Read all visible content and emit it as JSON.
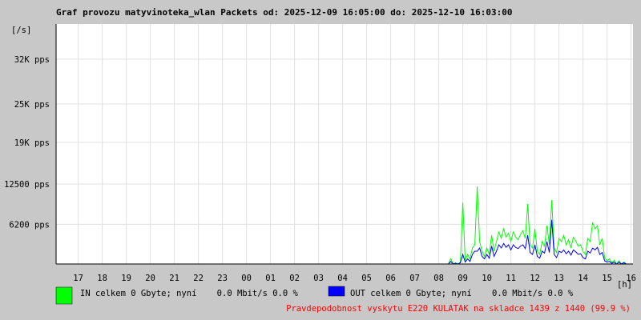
{
  "chart_data": {
    "type": "line",
    "title": "Graf provozu matyvinoteka_wlan Packets od: 2025-12-09 16:05:00 do: 2025-12-10 16:03:00",
    "y_label": "[/s]",
    "x_label": "[h]",
    "footer": "Pravdepodobnost vyskytu E220 KULATAK na skladce 1439 z 1440 (99.9 %)",
    "grid": true,
    "xlim": [
      0.08,
      24.08
    ],
    "xticks": [
      {
        "value": 1,
        "label": "17"
      },
      {
        "value": 2,
        "label": "18"
      },
      {
        "value": 3,
        "label": "19"
      },
      {
        "value": 4,
        "label": "20"
      },
      {
        "value": 5,
        "label": "21"
      },
      {
        "value": 6,
        "label": "22"
      },
      {
        "value": 7,
        "label": "23"
      },
      {
        "value": 8,
        "label": "00"
      },
      {
        "value": 9,
        "label": "01"
      },
      {
        "value": 10,
        "label": "02"
      },
      {
        "value": 11,
        "label": "03"
      },
      {
        "value": 12,
        "label": "04"
      },
      {
        "value": 13,
        "label": "05"
      },
      {
        "value": 14,
        "label": "06"
      },
      {
        "value": 15,
        "label": "07"
      },
      {
        "value": 16,
        "label": "08"
      },
      {
        "value": 17,
        "label": "09"
      },
      {
        "value": 18,
        "label": "10"
      },
      {
        "value": 19,
        "label": "11"
      },
      {
        "value": 20,
        "label": "12"
      },
      {
        "value": 21,
        "label": "13"
      },
      {
        "value": 22,
        "label": "14"
      },
      {
        "value": 23,
        "label": "15"
      },
      {
        "value": 24,
        "label": "16"
      }
    ],
    "ylim": [
      0,
      37500
    ],
    "yticks": [
      {
        "value": 6200,
        "label": "6200 pps"
      },
      {
        "value": 12500,
        "label": "12500 pps"
      },
      {
        "value": 19000,
        "label": "19K pps"
      },
      {
        "value": 25000,
        "label": "25K pps"
      },
      {
        "value": 32000,
        "label": "32K pps"
      }
    ],
    "x": [
      16.0,
      16.1,
      16.2,
      16.3,
      16.4,
      16.5,
      16.6,
      16.7,
      16.8,
      16.9,
      17.0,
      17.1,
      17.2,
      17.3,
      17.4,
      17.5,
      17.6,
      17.7,
      17.8,
      17.9,
      18.0,
      18.1,
      18.2,
      18.3,
      18.4,
      18.5,
      18.6,
      18.7,
      18.8,
      18.9,
      19.0,
      19.1,
      19.2,
      19.3,
      19.4,
      19.5,
      19.6,
      19.7,
      19.8,
      19.9,
      20.0,
      20.1,
      20.2,
      20.3,
      20.4,
      20.5,
      20.6,
      20.7,
      20.8,
      20.9,
      21.0,
      21.1,
      21.2,
      21.3,
      21.4,
      21.5,
      21.6,
      21.7,
      21.8,
      21.9,
      22.0,
      22.1,
      22.2,
      22.3,
      22.4,
      22.5,
      22.6,
      22.7,
      22.8,
      22.9,
      23.0,
      23.1,
      23.2,
      23.3,
      23.4,
      23.5,
      23.6,
      23.7,
      23.8,
      23.9,
      24.0
    ],
    "series": [
      {
        "name": "IN celkem 0 Gbyte; nyní    0.0 Mbit/s 0.0 %",
        "color": "#00ff00",
        "values": [
          0,
          0,
          0,
          0,
          0,
          800,
          0,
          200,
          0,
          300,
          9600,
          500,
          1500,
          800,
          2500,
          3000,
          12100,
          3500,
          2000,
          1200,
          2500,
          1500,
          4500,
          2000,
          3500,
          5000,
          4000,
          5500,
          4200,
          4800,
          3500,
          5000,
          4200,
          3800,
          4600,
          5200,
          4000,
          9400,
          3000,
          2500,
          5500,
          2000,
          1500,
          3500,
          2800,
          6000,
          3000,
          10000,
          2500,
          1800,
          4000,
          3500,
          4500,
          3000,
          3800,
          2500,
          4200,
          3600,
          2800,
          3000,
          2000,
          1500,
          4000,
          3500,
          6500,
          5500,
          6000,
          3000,
          4000,
          1000,
          500,
          800,
          200,
          600,
          0,
          500,
          0,
          300,
          0,
          0,
          0
        ]
      },
      {
        "name": "OUT celkem 0 Gbyte; nyní    0.0 Mbit/s 0.0 %",
        "color": "#0000ff",
        "values": [
          0,
          0,
          0,
          0,
          0,
          400,
          0,
          100,
          0,
          200,
          1500,
          300,
          800,
          400,
          1500,
          2000,
          2000,
          2500,
          1200,
          800,
          1500,
          900,
          2800,
          1200,
          2000,
          3000,
          2500,
          3200,
          2600,
          3000,
          2200,
          3000,
          2600,
          2400,
          2800,
          3000,
          2400,
          4500,
          1800,
          1500,
          3000,
          1200,
          900,
          2000,
          1700,
          3500,
          1800,
          6900,
          1500,
          1000,
          2000,
          1800,
          2200,
          1600,
          2000,
          1400,
          2200,
          1900,
          1500,
          1600,
          1000,
          800,
          2000,
          1700,
          2500,
          2200,
          2600,
          1500,
          1800,
          500,
          300,
          400,
          100,
          300,
          0,
          300,
          0,
          200,
          0,
          0,
          0
        ]
      }
    ]
  }
}
